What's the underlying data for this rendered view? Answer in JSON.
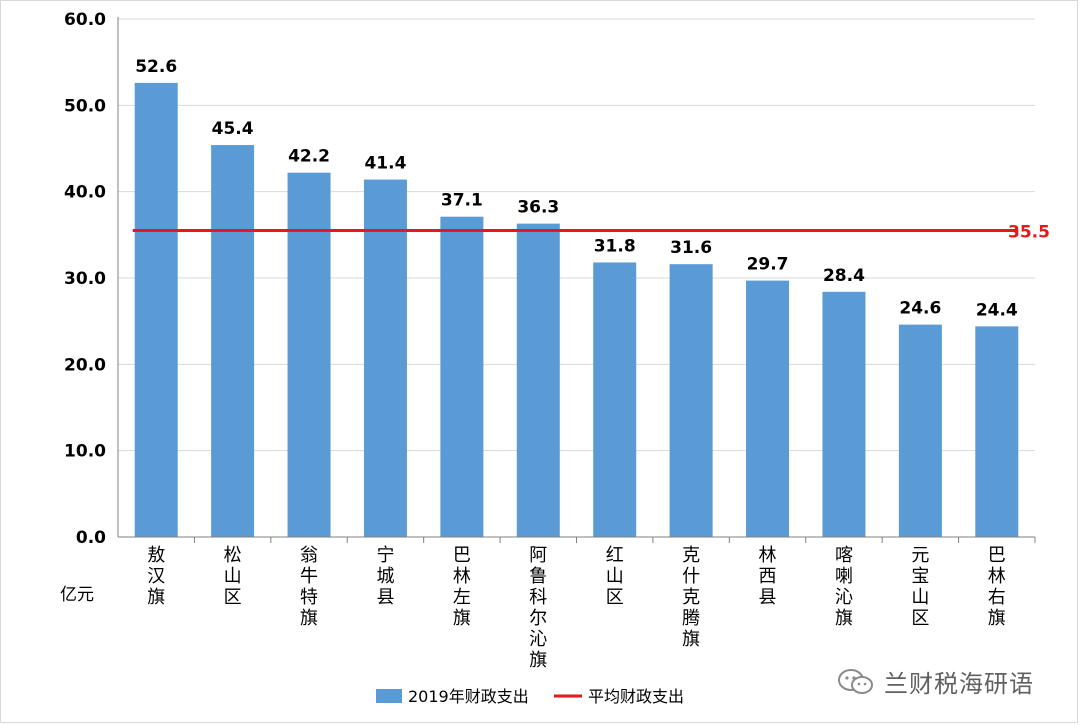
{
  "chart_data": {
    "type": "bar",
    "categories": [
      "敖汉旗",
      "松山区",
      "翁牛特旗",
      "宁城县",
      "巴林左旗",
      "阿鲁科尔沁旗",
      "红山区",
      "克什克腾旗",
      "林西县",
      "喀喇沁旗",
      "元宝山区",
      "巴林右旗"
    ],
    "series": [
      {
        "name": "2019年财政支出",
        "values": [
          52.6,
          45.4,
          42.2,
          41.4,
          37.1,
          36.3,
          31.8,
          31.6,
          29.7,
          28.4,
          24.6,
          24.4
        ]
      }
    ],
    "average": {
      "name": "平均财政支出",
      "value": 35.5,
      "label": "35.5"
    },
    "ylim": [
      0,
      60
    ],
    "yticks": [
      "0.0",
      "10.0",
      "20.0",
      "30.0",
      "40.0",
      "50.0",
      "60.0"
    ],
    "ylabel": "亿元",
    "grid": true,
    "legend": "bottom",
    "colors": {
      "bar": "#5b9bd5",
      "average": "#e3191b",
      "grid": "#d9d9d9",
      "axis": "#808080",
      "text": "#000000"
    }
  },
  "watermark": {
    "text": "兰财税海研语",
    "icon": "wechat-icon"
  }
}
